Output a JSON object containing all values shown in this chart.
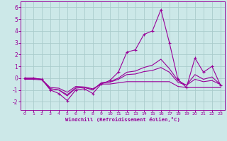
{
  "xlabel": "Windchill (Refroidissement éolien,°C)",
  "bg_color": "#cce8e8",
  "grid_color": "#aacccc",
  "line_color": "#990099",
  "xlim": [
    -0.5,
    23.5
  ],
  "ylim": [
    -2.7,
    6.5
  ],
  "yticks": [
    -2,
    -1,
    0,
    1,
    2,
    3,
    4,
    5,
    6
  ],
  "xticks": [
    0,
    1,
    2,
    3,
    4,
    5,
    6,
    7,
    8,
    9,
    10,
    11,
    12,
    13,
    14,
    15,
    16,
    17,
    18,
    19,
    20,
    21,
    22,
    23
  ],
  "series_main": [
    0.0,
    0.0,
    -0.1,
    -1.0,
    -1.3,
    -1.9,
    -1.0,
    -0.9,
    -1.3,
    -0.5,
    -0.2,
    0.5,
    2.2,
    2.4,
    3.7,
    4.0,
    5.8,
    3.0,
    -0.1,
    -0.8,
    1.7,
    0.5,
    1.0,
    -0.6
  ],
  "series_flat": [
    [
      0.0,
      0.0,
      -0.1,
      -0.8,
      -0.85,
      -1.2,
      -0.7,
      -0.75,
      -0.9,
      -0.5,
      -0.5,
      -0.4,
      -0.3,
      -0.3,
      -0.3,
      -0.3,
      -0.3,
      -0.3,
      -0.7,
      -0.8,
      -0.8,
      -0.8,
      -0.8,
      -0.8
    ],
    [
      -0.1,
      -0.1,
      -0.15,
      -0.9,
      -1.0,
      -1.5,
      -0.85,
      -0.78,
      -1.0,
      -0.4,
      -0.35,
      -0.1,
      0.3,
      0.35,
      0.55,
      0.65,
      0.9,
      0.5,
      -0.35,
      -0.6,
      -0.1,
      -0.3,
      -0.2,
      -0.55
    ],
    [
      -0.05,
      -0.05,
      -0.1,
      -0.9,
      -1.0,
      -1.4,
      -0.82,
      -0.78,
      -1.0,
      -0.4,
      -0.3,
      0.0,
      0.5,
      0.6,
      0.9,
      1.1,
      1.6,
      0.8,
      -0.2,
      -0.6,
      0.3,
      -0.1,
      0.1,
      -0.55
    ]
  ],
  "marker": "+",
  "markersize": 3.5,
  "linewidth": 0.8
}
